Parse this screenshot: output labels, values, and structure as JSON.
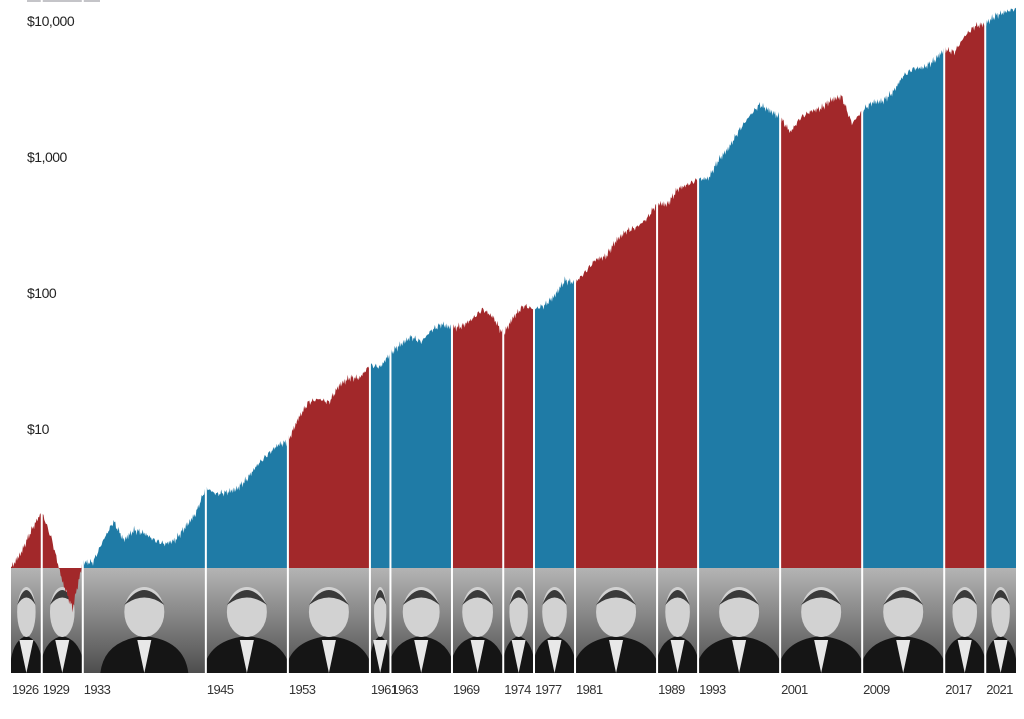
{
  "chart_data": {
    "type": "area",
    "yscale": "log",
    "ylim": [
      1,
      15000
    ],
    "y_ticks": [
      {
        "value": 10,
        "label": "$10"
      },
      {
        "value": 100,
        "label": "$100"
      },
      {
        "value": 1000,
        "label": "$1,000"
      },
      {
        "value": 10000,
        "label": "$10,000"
      }
    ],
    "x_start": 1926,
    "x_end": 2024,
    "years": [
      1926,
      1927,
      1928,
      1929,
      1930,
      1931,
      1932,
      1933,
      1934,
      1935,
      1936,
      1937,
      1938,
      1939,
      1940,
      1941,
      1942,
      1943,
      1944,
      1945,
      1946,
      1947,
      1948,
      1949,
      1950,
      1951,
      1952,
      1953,
      1954,
      1955,
      1956,
      1957,
      1958,
      1959,
      1960,
      1961,
      1962,
      1963,
      1964,
      1965,
      1966,
      1967,
      1968,
      1969,
      1970,
      1971,
      1972,
      1973,
      1974,
      1975,
      1976,
      1977,
      1978,
      1979,
      1980,
      1981,
      1982,
      1983,
      1984,
      1985,
      1986,
      1987,
      1988,
      1989,
      1990,
      1991,
      1992,
      1993,
      1994,
      1995,
      1996,
      1997,
      1998,
      1999,
      2000,
      2001,
      2002,
      2003,
      2004,
      2005,
      2006,
      2007,
      2008,
      2009,
      2010,
      2011,
      2012,
      2013,
      2014,
      2015,
      2016,
      2017,
      2018,
      2019,
      2020,
      2021,
      2022,
      2023,
      2024
    ],
    "values": [
      1.0,
      1.3,
      1.9,
      2.6,
      1.6,
      0.8,
      0.5,
      1.1,
      1.1,
      1.6,
      2.2,
      1.6,
      1.9,
      1.8,
      1.6,
      1.5,
      1.6,
      2.0,
      2.5,
      3.9,
      3.5,
      3.6,
      3.8,
      4.5,
      5.7,
      6.8,
      8.0,
      8.5,
      12.5,
      16.5,
      17.5,
      16.5,
      22,
      25,
      25,
      31,
      30,
      38,
      44,
      50,
      46,
      56,
      62,
      58,
      60,
      68,
      80,
      70,
      52,
      70,
      85,
      80,
      85,
      100,
      130,
      125,
      150,
      185,
      195,
      255,
      300,
      320,
      370,
      480,
      470,
      610,
      660,
      720,
      730,
      1000,
      1230,
      1650,
      2100,
      2550,
      2300,
      2050,
      1600,
      2050,
      2280,
      2400,
      2770,
      2930,
      1850,
      2300,
      2650,
      2700,
      3150,
      4150,
      4700,
      4780,
      5350,
      6500,
      6200,
      8150,
      9650,
      10000,
      11500,
      12300,
      13000
    ],
    "terms": [
      {
        "label": "1926",
        "start": 1926,
        "color": "#a2282a"
      },
      {
        "label": "1929",
        "start": 1929,
        "color": "#a2282a"
      },
      {
        "label": "1933",
        "start": 1933,
        "color": "#1f7ba6"
      },
      {
        "label": "1945",
        "start": 1945,
        "color": "#1f7ba6"
      },
      {
        "label": "1953",
        "start": 1953,
        "color": "#a2282a"
      },
      {
        "label": "1961",
        "start": 1961,
        "color": "#1f7ba6"
      },
      {
        "label": "1963",
        "start": 1963,
        "color": "#1f7ba6"
      },
      {
        "label": "1969",
        "start": 1969,
        "color": "#a2282a"
      },
      {
        "label": "1974",
        "start": 1974,
        "color": "#a2282a"
      },
      {
        "label": "1977",
        "start": 1977,
        "color": "#1f7ba6"
      },
      {
        "label": "1981",
        "start": 1981,
        "color": "#a2282a"
      },
      {
        "label": "1989",
        "start": 1989,
        "color": "#a2282a"
      },
      {
        "label": "1993",
        "start": 1993,
        "color": "#1f7ba6"
      },
      {
        "label": "2001",
        "start": 2001,
        "color": "#a2282a"
      },
      {
        "label": "2009",
        "start": 2009,
        "color": "#1f7ba6"
      },
      {
        "label": "2017",
        "start": 2017,
        "color": "#a2282a"
      },
      {
        "label": "2021",
        "start": 2021,
        "color": "#1f7ba6"
      }
    ],
    "grid": false
  }
}
